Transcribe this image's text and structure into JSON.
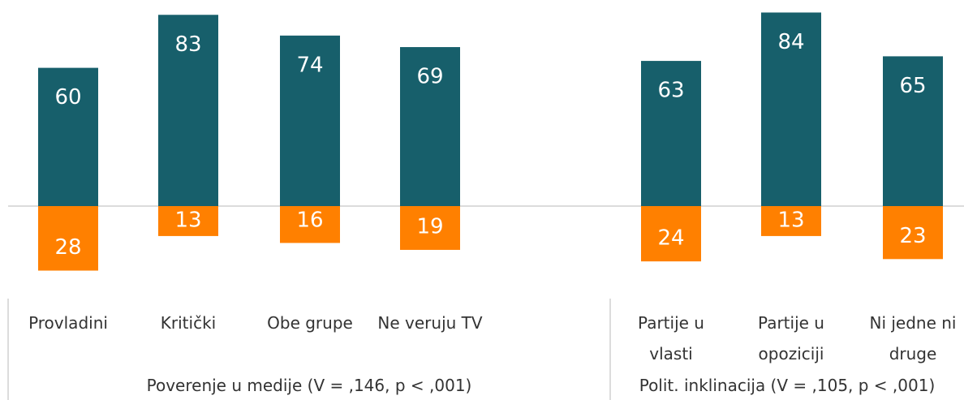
{
  "chart_data": [
    {
      "type": "diverging_bar",
      "xlabel": "Poverenje u medije (V = ,146, p < ,001)",
      "categories": [
        "Provladini",
        "Kritički",
        "Obe grupe",
        "Ne veruju TV"
      ],
      "series": [
        {
          "color": "#175f6b",
          "values": [
            60,
            83,
            74,
            69
          ]
        },
        {
          "color": "#ff8000",
          "values": [
            28,
            13,
            16,
            19
          ]
        }
      ]
    },
    {
      "type": "diverging_bar",
      "xlabel": "Polit. inklinacija (V = ,105, p < ,001)",
      "categories": [
        "Partije u vlasti",
        "Partije u opoziciji",
        "Ni jedne ni druge"
      ],
      "series": [
        {
          "color": "#175f6b",
          "values": [
            63,
            84,
            65
          ]
        },
        {
          "color": "#ff8000",
          "values": [
            24,
            13,
            23
          ]
        }
      ]
    }
  ]
}
